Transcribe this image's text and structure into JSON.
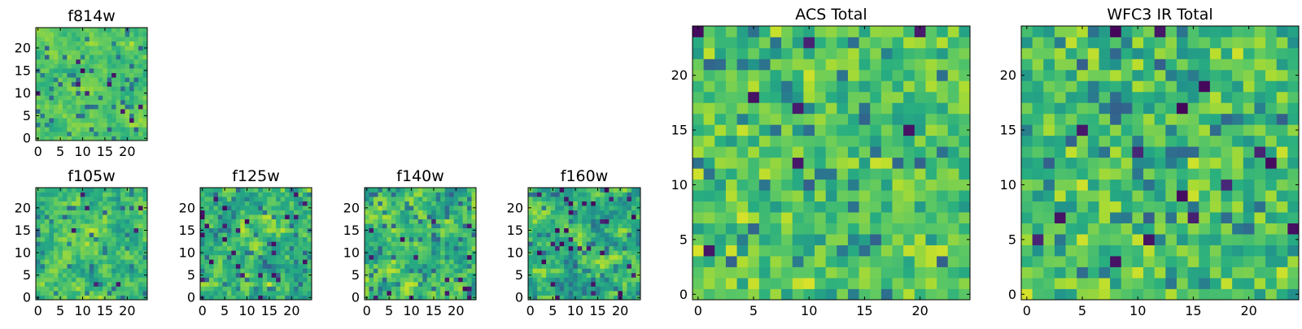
{
  "chart_data": [
    {
      "type": "heatmap",
      "title": "f814w",
      "xlabel": "",
      "ylabel": "",
      "grid": false,
      "xlim": [
        0,
        24
      ],
      "ylim": [
        0,
        24
      ],
      "x_ticks": [
        0,
        5,
        10,
        15,
        20
      ],
      "y_ticks": [
        0,
        5,
        10,
        15,
        20
      ],
      "pixel_resolution": "fine",
      "colormap": "viridis",
      "approx_value_range": [
        0.55,
        0.9
      ],
      "dark_outliers": "few"
    },
    {
      "type": "heatmap",
      "title": "f105w",
      "xlabel": "",
      "ylabel": "",
      "grid": false,
      "xlim": [
        0,
        24
      ],
      "ylim": [
        0,
        24
      ],
      "x_ticks": [
        0,
        5,
        10,
        15,
        20
      ],
      "y_ticks": [
        0,
        5,
        10,
        15,
        20
      ],
      "pixel_resolution": "fine",
      "colormap": "viridis",
      "approx_value_range": [
        0.45,
        0.95
      ],
      "dark_outliers": "few"
    },
    {
      "type": "heatmap",
      "title": "f125w",
      "xlabel": "",
      "ylabel": "",
      "grid": false,
      "xlim": [
        0,
        24
      ],
      "ylim": [
        0,
        24
      ],
      "x_ticks": [
        0,
        5,
        10,
        15,
        20
      ],
      "y_ticks": [
        0,
        5,
        10,
        15,
        20
      ],
      "pixel_resolution": "fine",
      "colormap": "viridis",
      "approx_value_range": [
        0.35,
        0.95
      ],
      "dark_outliers": "many"
    },
    {
      "type": "heatmap",
      "title": "f140w",
      "xlabel": "",
      "ylabel": "",
      "grid": false,
      "xlim": [
        0,
        24
      ],
      "ylim": [
        0,
        24
      ],
      "x_ticks": [
        0,
        5,
        10,
        15,
        20
      ],
      "y_ticks": [
        0,
        5,
        10,
        15,
        20
      ],
      "pixel_resolution": "fine",
      "colormap": "viridis",
      "approx_value_range": [
        0.4,
        0.95
      ],
      "dark_outliers": "some"
    },
    {
      "type": "heatmap",
      "title": "f160w",
      "xlabel": "",
      "ylabel": "",
      "grid": false,
      "xlim": [
        0,
        24
      ],
      "ylim": [
        0,
        24
      ],
      "x_ticks": [
        0,
        5,
        10,
        15,
        20
      ],
      "y_ticks": [
        0,
        5,
        10,
        15,
        20
      ],
      "pixel_resolution": "fine",
      "colormap": "viridis",
      "approx_value_range": [
        0.35,
        0.95
      ],
      "dark_outliers": "many"
    },
    {
      "type": "heatmap",
      "title": "ACS Total",
      "xlabel": "",
      "ylabel": "",
      "grid": false,
      "xlim": [
        0,
        24
      ],
      "ylim": [
        0,
        24
      ],
      "x_ticks": [
        0,
        5,
        10,
        15,
        20
      ],
      "y_ticks": [
        0,
        5,
        10,
        15,
        20
      ],
      "pixel_resolution": "coarse",
      "colormap": "viridis",
      "approx_value_range": [
        0.5,
        0.95
      ],
      "dark_outliers": "few"
    },
    {
      "type": "heatmap",
      "title": "WFC3 IR Total",
      "xlabel": "",
      "ylabel": "",
      "grid": false,
      "xlim": [
        0,
        24
      ],
      "ylim": [
        0,
        24
      ],
      "x_ticks": [
        0,
        5,
        10,
        15,
        20
      ],
      "y_ticks": [
        0,
        5,
        10,
        15,
        20
      ],
      "pixel_resolution": "coarse",
      "colormap": "viridis",
      "approx_value_range": [
        0.45,
        0.95
      ],
      "dark_outliers": "some"
    }
  ]
}
